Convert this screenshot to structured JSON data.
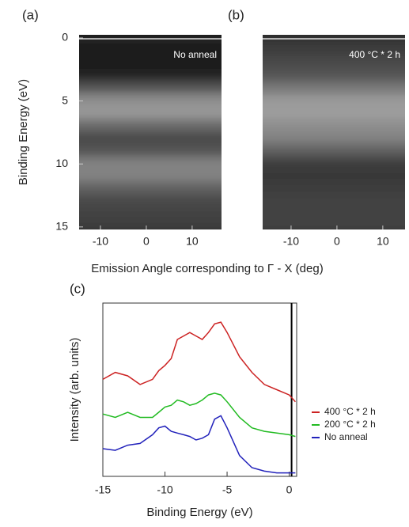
{
  "chart_data": [
    {
      "type": "heatmap",
      "panel_label": "(a)",
      "annotation": "No anneal",
      "xlabel": "Emission Angle corresponding to Γ - X (deg)",
      "ylabel": "Binding Energy (eV)",
      "y": [
        0,
        1,
        2,
        3,
        4,
        5,
        6,
        7,
        8,
        9,
        10,
        11,
        12,
        13,
        14,
        15
      ],
      "values": [
        0.08,
        0.06,
        0.06,
        0.08,
        0.3,
        0.55,
        0.6,
        0.4,
        0.25,
        0.3,
        0.5,
        0.5,
        0.35,
        0.25,
        0.22,
        0.2
      ],
      "xlim": [
        -14.65,
        16.4
      ],
      "ylim": [
        -0.25,
        15.2
      ],
      "xticks": [
        -10,
        0,
        10
      ],
      "yticks": [
        0,
        5,
        10,
        15
      ]
    },
    {
      "type": "heatmap",
      "panel_label": "(b)",
      "annotation": "400 °C * 2 h",
      "y": [
        0,
        1,
        2,
        3,
        4,
        5,
        6,
        7,
        8,
        9,
        10,
        11,
        12,
        13,
        14,
        15
      ],
      "values": [
        0.15,
        0.2,
        0.25,
        0.3,
        0.45,
        0.6,
        0.62,
        0.55,
        0.5,
        0.35,
        0.2,
        0.18,
        0.2,
        0.22,
        0.22,
        0.22
      ],
      "xlim": [
        -16.2,
        14.85
      ],
      "ylim": [
        -0.25,
        15.2
      ],
      "xticks": [
        -10,
        0,
        10
      ]
    },
    {
      "type": "line",
      "panel_label": "(c)",
      "xlabel": "Binding Energy (eV)",
      "ylabel": "Intensity (arb. units)",
      "x": [
        -15,
        -14,
        -13,
        -12,
        -11,
        -10.5,
        -10,
        -9.5,
        -9,
        -8.5,
        -8,
        -7.5,
        -7,
        -6.5,
        -6,
        -5.5,
        -5,
        -4,
        -3,
        -2,
        -1,
        0,
        0.5
      ],
      "series": [
        {
          "name": "400 °C * 2 h",
          "color": "#cc2222",
          "values": [
            0.56,
            0.6,
            0.58,
            0.53,
            0.56,
            0.61,
            0.64,
            0.68,
            0.79,
            0.81,
            0.83,
            0.81,
            0.79,
            0.83,
            0.88,
            0.89,
            0.83,
            0.69,
            0.6,
            0.53,
            0.5,
            0.47,
            0.43
          ]
        },
        {
          "name": "200 °C * 2 h",
          "color": "#22bb22",
          "values": [
            0.36,
            0.34,
            0.37,
            0.34,
            0.34,
            0.37,
            0.4,
            0.41,
            0.44,
            0.43,
            0.41,
            0.42,
            0.44,
            0.47,
            0.48,
            0.47,
            0.43,
            0.34,
            0.28,
            0.26,
            0.25,
            0.24,
            0.23
          ]
        },
        {
          "name": "No anneal",
          "color": "#2222bb",
          "values": [
            0.16,
            0.15,
            0.18,
            0.19,
            0.24,
            0.28,
            0.29,
            0.26,
            0.25,
            0.24,
            0.23,
            0.21,
            0.22,
            0.24,
            0.33,
            0.35,
            0.28,
            0.12,
            0.05,
            0.03,
            0.02,
            0.02,
            0.02
          ]
        }
      ],
      "xlim": [
        -15,
        0.6
      ],
      "ylim": [
        0,
        1
      ],
      "xticks": [
        -15,
        -10,
        -5,
        0
      ],
      "vline": 0
    }
  ]
}
